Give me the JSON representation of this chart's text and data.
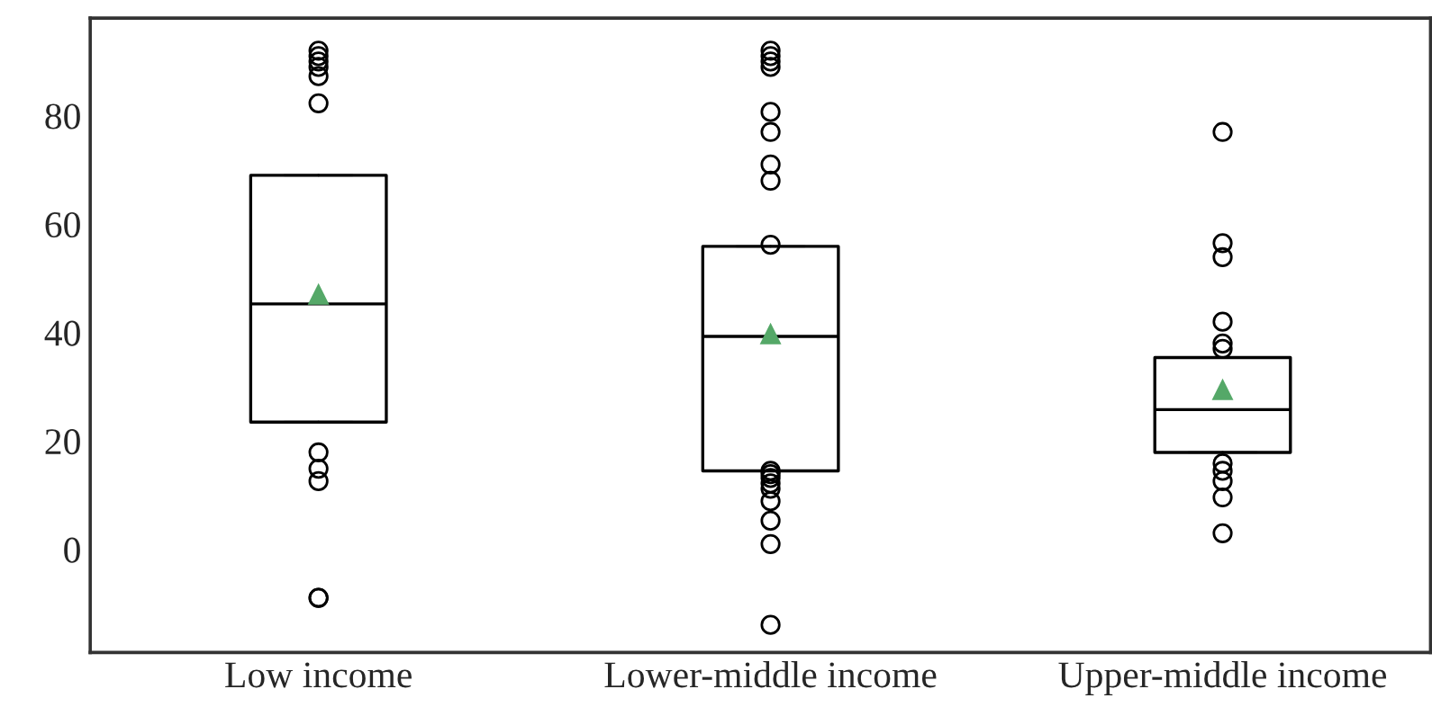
{
  "chart_data": {
    "type": "box",
    "categories": [
      "Low income",
      "Lower-middle income",
      "Upper-middle income"
    ],
    "boxes": [
      {
        "low": 23.5,
        "q1": 23.5,
        "median": 45.3,
        "q3": 69,
        "high": 69,
        "mean": 47,
        "outliers": [
          92,
          91,
          90,
          89,
          87.3,
          82.3,
          17.9,
          14.9,
          12.6,
          -8.9,
          -8.9
        ]
      },
      {
        "low": 14.5,
        "q1": 14.5,
        "median": 39.3,
        "q3": 55.9,
        "high": 55.9,
        "mean": 39.7,
        "outliers": [
          92,
          91,
          90,
          89,
          80.7,
          77,
          71,
          68,
          56.2,
          14.5,
          13.9,
          13.2,
          12.2,
          11.2,
          8.9,
          5.3,
          1,
          -13.9
        ]
      },
      {
        "low": 17.9,
        "q1": 17.9,
        "median": 25.8,
        "q3": 35.4,
        "high": 35.4,
        "mean": 29.4,
        "outliers": [
          77,
          56.5,
          53.9,
          42,
          38,
          37,
          15.9,
          14.5,
          12.6,
          9.6,
          3
        ]
      }
    ],
    "ylim": [
      -19,
      98
    ],
    "yticks": [
      0,
      20,
      40,
      60,
      80
    ],
    "grid": false
  }
}
